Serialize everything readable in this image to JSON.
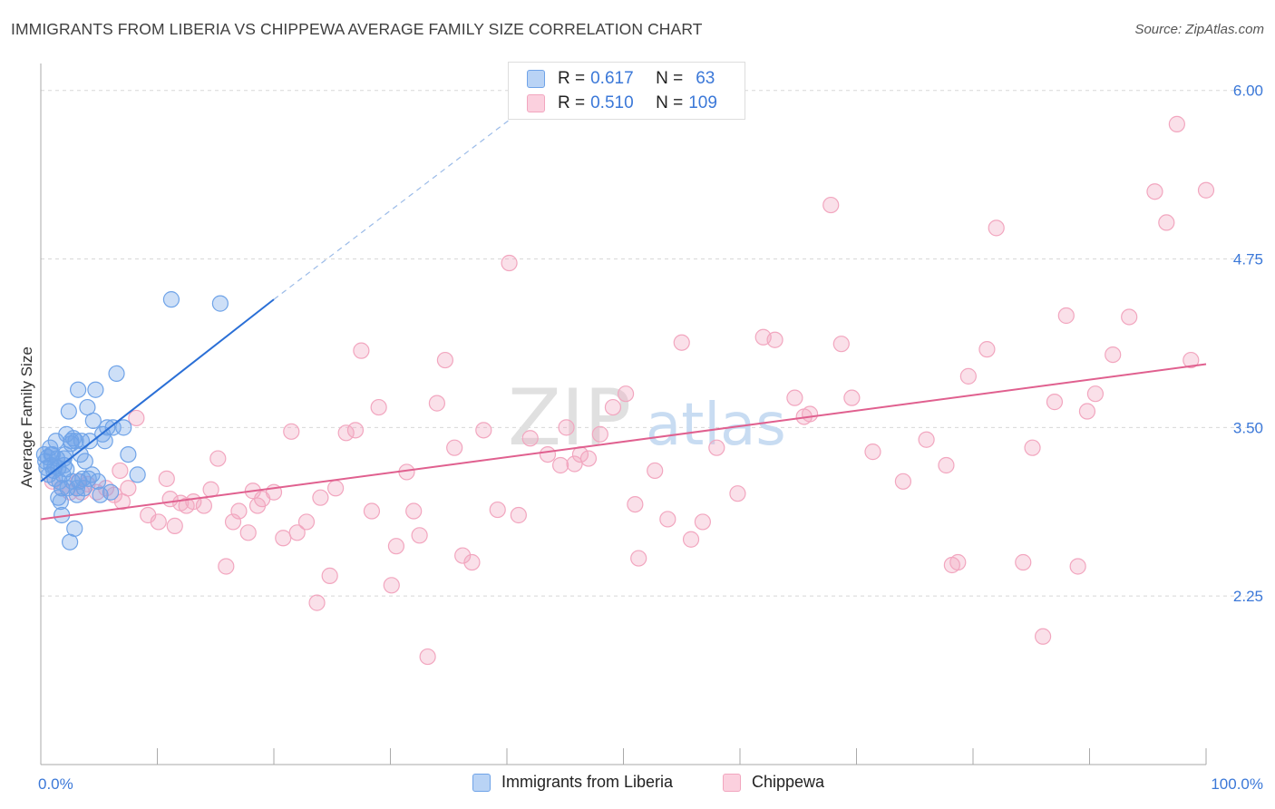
{
  "title": "IMMIGRANTS FROM LIBERIA VS CHIPPEWA AVERAGE FAMILY SIZE CORRELATION CHART",
  "source": "Source: ZipAtlas.com",
  "watermark": {
    "zip": "ZIP",
    "atlas": "atlas"
  },
  "legend_top": {
    "rows": [
      {
        "r_label": "R =",
        "r_value": "0.617",
        "n_label": "N =",
        "n_value": "63"
      },
      {
        "r_label": "R =",
        "r_value": "0.510",
        "n_label": "N =",
        "n_value": "109"
      }
    ]
  },
  "chart_data": {
    "type": "scatter",
    "title": "IMMIGRANTS FROM LIBERIA VS CHIPPEWA AVERAGE FAMILY SIZE CORRELATION CHART",
    "xlabel": "",
    "ylabel": "Average Family Size",
    "xlim": [
      0,
      100
    ],
    "ylim": [
      1.0,
      6.2
    ],
    "x_tick_labels": [
      "0.0%",
      "100.0%"
    ],
    "y_ticks": [
      2.25,
      3.5,
      4.75,
      6.0
    ],
    "y_tick_labels": [
      "2.25",
      "3.50",
      "4.75",
      "6.00"
    ],
    "grid": true,
    "colors": {
      "liberia": "#6fa3e8",
      "liberia_line": "#2a6fd6",
      "chippewa": "#f2a6bf",
      "chippewa_line": "#e0608f"
    },
    "series": [
      {
        "name": "Immigrants from Liberia",
        "r": 0.617,
        "n": 63,
        "trend": {
          "x0": 0,
          "y0": 3.1,
          "x1": 20,
          "y1": 4.45,
          "dash_to_x": 42,
          "dash_to_y": 5.9
        },
        "points": [
          [
            0.3,
            3.3
          ],
          [
            0.4,
            3.25
          ],
          [
            0.5,
            3.2
          ],
          [
            0.6,
            3.28
          ],
          [
            0.7,
            3.15
          ],
          [
            0.8,
            3.35
          ],
          [
            0.9,
            3.22
          ],
          [
            1.0,
            3.3
          ],
          [
            1.1,
            3.18
          ],
          [
            1.2,
            3.12
          ],
          [
            1.3,
            3.4
          ],
          [
            1.4,
            3.27
          ],
          [
            1.5,
            3.2
          ],
          [
            1.6,
            3.1
          ],
          [
            1.7,
            2.95
          ],
          [
            1.8,
            3.05
          ],
          [
            1.9,
            3.15
          ],
          [
            2.0,
            3.22
          ],
          [
            2.1,
            3.3
          ],
          [
            2.2,
            3.45
          ],
          [
            2.3,
            3.05
          ],
          [
            2.4,
            3.62
          ],
          [
            2.5,
            2.65
          ],
          [
            2.6,
            3.4
          ],
          [
            2.7,
            3.1
          ],
          [
            2.8,
            3.42
          ],
          [
            2.9,
            2.75
          ],
          [
            3.0,
            3.4
          ],
          [
            3.1,
            3.05
          ],
          [
            3.2,
            3.78
          ],
          [
            3.3,
            3.1
          ],
          [
            3.4,
            3.3
          ],
          [
            3.5,
            3.4
          ],
          [
            3.7,
            3.05
          ],
          [
            3.8,
            3.25
          ],
          [
            4.0,
            3.65
          ],
          [
            4.1,
            3.12
          ],
          [
            4.2,
            3.4
          ],
          [
            4.5,
            3.55
          ],
          [
            4.7,
            3.78
          ],
          [
            4.9,
            3.1
          ],
          [
            5.1,
            3.0
          ],
          [
            5.3,
            3.45
          ],
          [
            5.5,
            3.4
          ],
          [
            5.7,
            3.5
          ],
          [
            6.0,
            3.02
          ],
          [
            6.2,
            3.5
          ],
          [
            6.5,
            3.9
          ],
          [
            7.1,
            3.5
          ],
          [
            7.5,
            3.3
          ],
          [
            8.3,
            3.15
          ],
          [
            11.2,
            4.45
          ],
          [
            15.4,
            4.42
          ],
          [
            0.9,
            3.3
          ],
          [
            1.5,
            2.98
          ],
          [
            2.0,
            3.27
          ],
          [
            2.6,
            3.38
          ],
          [
            3.1,
            3.0
          ],
          [
            3.6,
            3.12
          ],
          [
            4.4,
            3.15
          ],
          [
            1.2,
            3.21
          ],
          [
            2.2,
            3.19
          ],
          [
            1.8,
            2.85
          ]
        ]
      },
      {
        "name": "Chippewa",
        "r": 0.51,
        "n": 109,
        "trend": {
          "x0": 0,
          "y0": 2.82,
          "x1": 100,
          "y1": 3.97
        },
        "points": [
          [
            1.0,
            3.1
          ],
          [
            1.8,
            3.05
          ],
          [
            2.5,
            3.02
          ],
          [
            3.2,
            3.1
          ],
          [
            4.0,
            3.08
          ],
          [
            4.8,
            3.02
          ],
          [
            5.6,
            3.05
          ],
          [
            6.3,
            3.0
          ],
          [
            7.0,
            2.95
          ],
          [
            7.5,
            3.05
          ],
          [
            8.2,
            3.57
          ],
          [
            9.2,
            2.85
          ],
          [
            10.1,
            2.8
          ],
          [
            10.8,
            3.12
          ],
          [
            11.1,
            2.97
          ],
          [
            11.5,
            2.77
          ],
          [
            12.0,
            2.94
          ],
          [
            13.1,
            2.95
          ],
          [
            14.0,
            2.92
          ],
          [
            14.6,
            3.04
          ],
          [
            15.2,
            3.27
          ],
          [
            15.9,
            2.47
          ],
          [
            16.5,
            2.8
          ],
          [
            17.0,
            2.88
          ],
          [
            17.8,
            2.72
          ],
          [
            18.2,
            3.03
          ],
          [
            19.0,
            2.97
          ],
          [
            20.0,
            3.02
          ],
          [
            20.8,
            2.68
          ],
          [
            21.5,
            3.47
          ],
          [
            22.0,
            2.72
          ],
          [
            22.8,
            2.8
          ],
          [
            23.7,
            2.2
          ],
          [
            24.8,
            2.4
          ],
          [
            25.3,
            3.05
          ],
          [
            26.2,
            3.46
          ],
          [
            27.0,
            3.48
          ],
          [
            27.5,
            4.07
          ],
          [
            28.4,
            2.88
          ],
          [
            29.0,
            3.65
          ],
          [
            30.1,
            2.33
          ],
          [
            31.4,
            3.17
          ],
          [
            32.0,
            2.88
          ],
          [
            32.5,
            2.7
          ],
          [
            33.2,
            1.8
          ],
          [
            34.0,
            3.68
          ],
          [
            34.7,
            4.0
          ],
          [
            35.5,
            3.35
          ],
          [
            36.2,
            2.55
          ],
          [
            37.0,
            2.5
          ],
          [
            38.0,
            3.48
          ],
          [
            39.2,
            2.89
          ],
          [
            40.2,
            4.72
          ],
          [
            42.0,
            3.42
          ],
          [
            43.5,
            3.3
          ],
          [
            44.6,
            3.22
          ],
          [
            45.1,
            3.5
          ],
          [
            45.8,
            3.23
          ],
          [
            46.3,
            3.3
          ],
          [
            47.0,
            3.27
          ],
          [
            48.0,
            3.45
          ],
          [
            49.1,
            3.65
          ],
          [
            50.2,
            3.75
          ],
          [
            51.0,
            2.93
          ],
          [
            51.3,
            2.53
          ],
          [
            52.7,
            3.18
          ],
          [
            53.8,
            2.82
          ],
          [
            55.0,
            4.13
          ],
          [
            55.8,
            2.67
          ],
          [
            56.8,
            2.8
          ],
          [
            58.0,
            3.35
          ],
          [
            59.8,
            3.01
          ],
          [
            62.0,
            4.17
          ],
          [
            63.0,
            4.15
          ],
          [
            64.7,
            3.72
          ],
          [
            65.5,
            3.58
          ],
          [
            66.0,
            3.6
          ],
          [
            67.8,
            5.15
          ],
          [
            68.7,
            4.12
          ],
          [
            69.6,
            3.72
          ],
          [
            71.4,
            3.32
          ],
          [
            74.0,
            3.1
          ],
          [
            76.0,
            3.41
          ],
          [
            77.7,
            3.22
          ],
          [
            78.2,
            2.48
          ],
          [
            78.7,
            2.5
          ],
          [
            79.6,
            3.88
          ],
          [
            81.2,
            4.08
          ],
          [
            82.0,
            4.98
          ],
          [
            84.3,
            2.5
          ],
          [
            85.1,
            3.35
          ],
          [
            86.0,
            1.95
          ],
          [
            87.0,
            3.69
          ],
          [
            88.0,
            4.33
          ],
          [
            89.0,
            2.47
          ],
          [
            89.8,
            3.62
          ],
          [
            90.5,
            3.75
          ],
          [
            92.0,
            4.04
          ],
          [
            93.4,
            4.32
          ],
          [
            95.6,
            5.25
          ],
          [
            96.6,
            5.02
          ],
          [
            97.5,
            5.75
          ],
          [
            98.7,
            4.0
          ],
          [
            100.0,
            5.26
          ],
          [
            3.5,
            3.02
          ],
          [
            6.8,
            3.18
          ],
          [
            12.5,
            2.92
          ],
          [
            18.6,
            2.92
          ],
          [
            24.0,
            2.98
          ],
          [
            30.5,
            2.62
          ],
          [
            41.0,
            2.85
          ]
        ]
      }
    ]
  },
  "bottom_legend": [
    {
      "label": "Immigrants from Liberia"
    },
    {
      "label": "Chippewa"
    }
  ]
}
